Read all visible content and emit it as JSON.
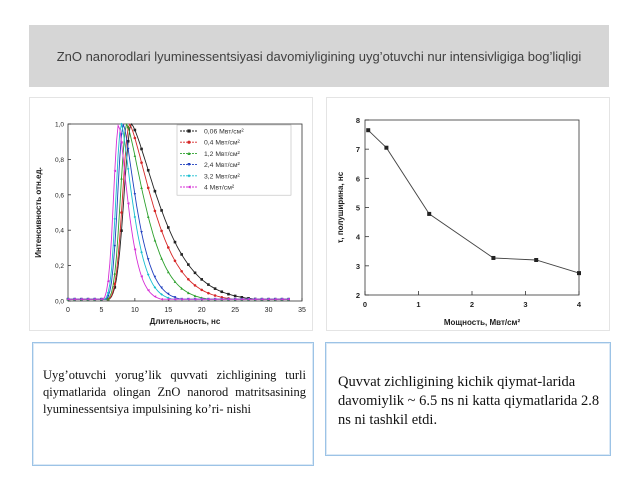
{
  "slide": {
    "title": "ZnO nanorodlari lyuminessentsiyasi davomiyligining uyg’otuvchi nur intensivligiga bog’liqligi",
    "left_caption": "Uyg’otuvchi yorug’lik quvvati zichligining turli qiymatlarida olingan ZnO nanorod matritsasining lyuminessentsiya impulsining ko’ri- nishi",
    "right_caption": "Quvvat zichligining kichik qiymat-larida davomiylik ~ 6.5 ns ni katta qiymatlarida 2.8 ns ni tashkil etdi."
  },
  "chart_data": [
    {
      "type": "line",
      "xlabel": "Длительность, нс",
      "ylabel": "Интенсивность отн.ед.",
      "xlim": [
        0,
        35
      ],
      "ylim": [
        0,
        1.0
      ],
      "x_ticks": [
        "0",
        "5",
        "10",
        "15",
        "20",
        "25",
        "30",
        "35"
      ],
      "y_ticks": [
        "0,0",
        "0,2",
        "0,4",
        "0,6",
        "0,8",
        "1,0"
      ],
      "legend_position": "top-right",
      "series": [
        {
          "name": "0,06 Мвт/см²",
          "color": "#222222",
          "marker": "square",
          "peak_x": 9.5,
          "rise": 2.6,
          "decay": 5.6
        },
        {
          "name": "0,4 Мвт/см²",
          "color": "#d62828",
          "marker": "circle",
          "peak_x": 9.2,
          "rise": 2.4,
          "decay": 4.7
        },
        {
          "name": "1,2 Мвт/см²",
          "color": "#2ca02c",
          "marker": "triangle",
          "peak_x": 8.8,
          "rise": 2.2,
          "decay": 3.7
        },
        {
          "name": "2,4 Мвт/см²",
          "color": "#1f3fbf",
          "marker": "triangle-down",
          "peak_x": 8.3,
          "rise": 2.0,
          "decay": 2.6
        },
        {
          "name": "3,2 Мвт/см²",
          "color": "#17becf",
          "marker": "diamond",
          "peak_x": 8.0,
          "rise": 1.9,
          "decay": 2.3
        },
        {
          "name": "4 Мвт/см²",
          "color": "#d62fd6",
          "marker": "triangle-left",
          "peak_x": 7.6,
          "rise": 1.8,
          "decay": 1.9
        }
      ]
    },
    {
      "type": "line",
      "xlabel": "Мощность, Мвт/см²",
      "ylabel": "τ, полуширина, нс",
      "xlim": [
        0,
        4
      ],
      "ylim": [
        2,
        8
      ],
      "x_ticks": [
        "0",
        "1",
        "2",
        "3",
        "4"
      ],
      "y_ticks": [
        "2",
        "3",
        "4",
        "5",
        "6",
        "7",
        "8"
      ],
      "series": [
        {
          "x": [
            0.06,
            0.4,
            1.2,
            2.4,
            3.2,
            4.0
          ],
          "values": [
            7.65,
            7.05,
            4.78,
            3.27,
            3.2,
            2.75
          ],
          "color": "#222222",
          "marker": "square"
        }
      ]
    }
  ]
}
